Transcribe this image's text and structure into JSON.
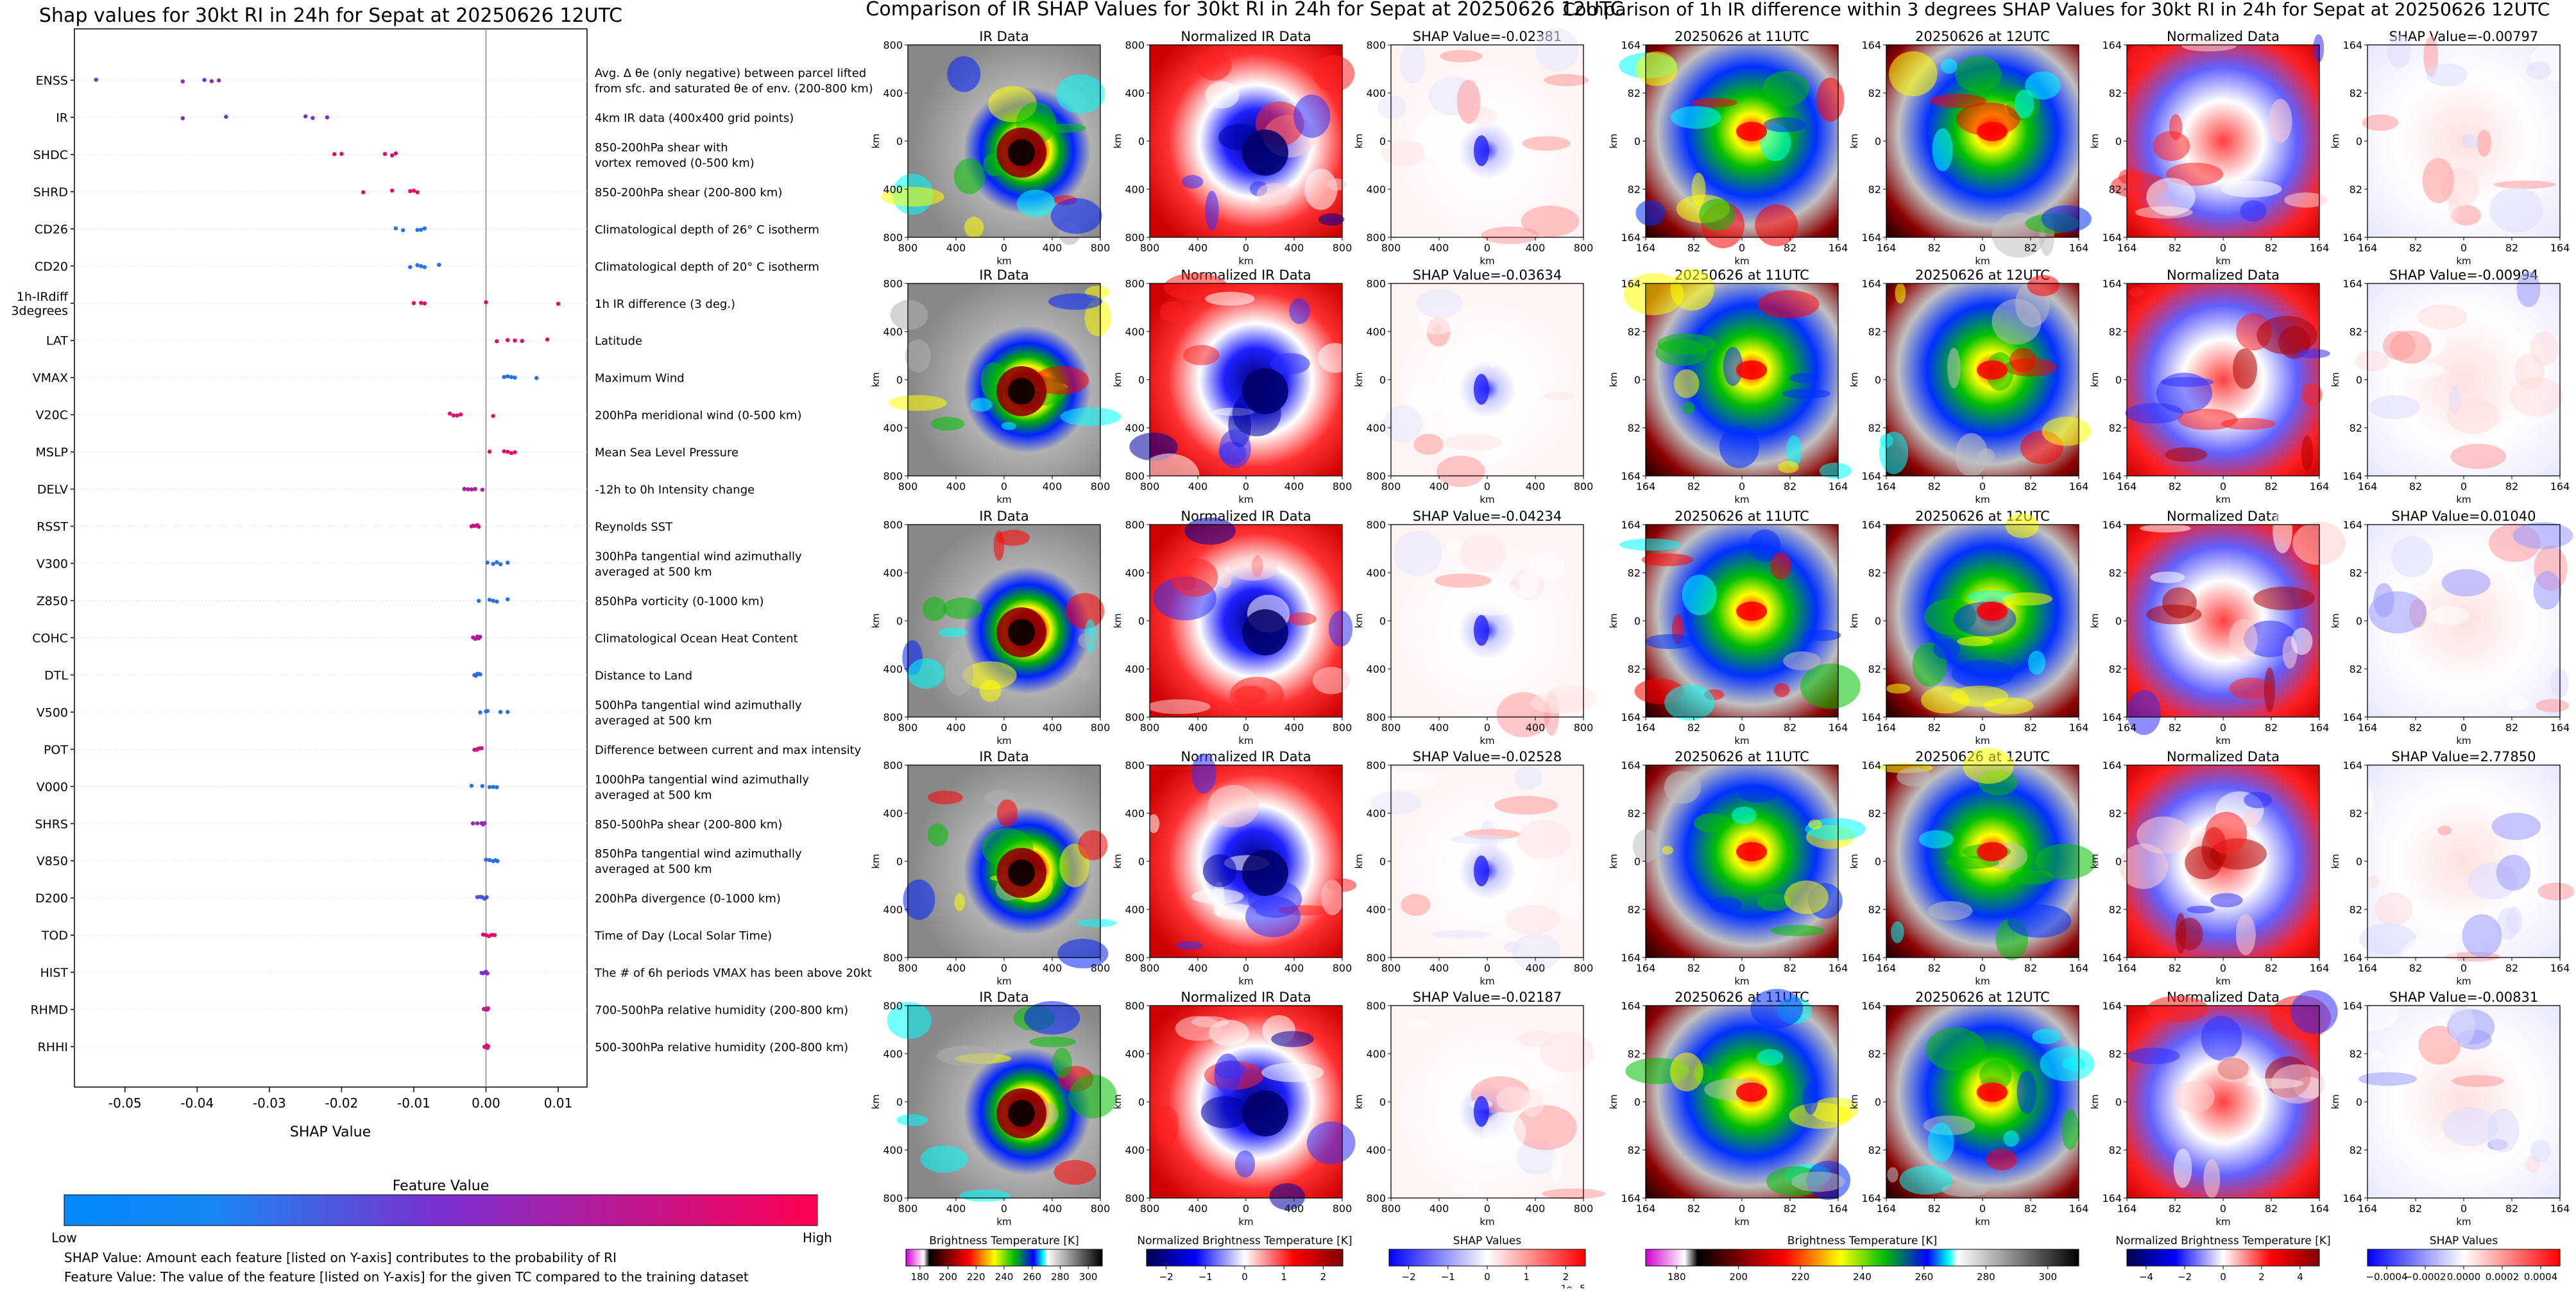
{
  "chart_data": [
    {
      "type": "scatter",
      "title": "Shap values for 30kt RI in 24h for Sepat at 20250626 12UTC",
      "xlabel": "SHAP Value",
      "xlim": [
        -0.057,
        0.014
      ],
      "xticks": [
        "-0.05",
        "-0.04",
        "-0.03",
        "-0.02",
        "-0.01",
        "0.00",
        "0.01"
      ],
      "xtick_values": [
        -0.05,
        -0.04,
        -0.03,
        -0.02,
        -0.01,
        0.0,
        0.01
      ],
      "colorbar": {
        "title": "Feature Value",
        "low": "Low",
        "high": "High",
        "colors": [
          "#008afb",
          "#7b2fcf",
          "#ff0052"
        ]
      },
      "footnotes": [
        "SHAP Value: Amount each feature [listed on Y-axis] contributes to the probability of RI",
        "Feature Value: The value of the feature [listed on Y-axis] for the given TC compared to the training dataset"
      ],
      "features": [
        {
          "name": "ENSS",
          "desc": [
            "Avg. Δ θe (only negative) between parcel lifted",
            "from sfc. and saturated θe of env. (200-800 km)"
          ],
          "points": [
            [
              -0.054,
              0.52
            ],
            [
              -0.042,
              0.55
            ],
            [
              -0.039,
              0.55
            ],
            [
              -0.038,
              0.6
            ],
            [
              -0.037,
              0.6
            ]
          ]
        },
        {
          "name": "IR",
          "desc": [
            "4km IR data (400x400 grid points)"
          ],
          "points": [
            [
              -0.042,
              0.55
            ],
            [
              -0.036,
              0.5
            ],
            [
              -0.025,
              0.45
            ],
            [
              -0.024,
              0.5
            ],
            [
              -0.022,
              0.5
            ]
          ]
        },
        {
          "name": "SHDC",
          "desc": [
            "850-200hPa shear with",
            "vortex removed (0-500 km)"
          ],
          "points": [
            [
              -0.021,
              0.85
            ],
            [
              -0.02,
              0.85
            ],
            [
              -0.014,
              0.9
            ],
            [
              -0.013,
              0.9
            ],
            [
              -0.0125,
              0.9
            ]
          ]
        },
        {
          "name": "SHRD",
          "desc": [
            "850-200hPa shear (200-800 km)"
          ],
          "points": [
            [
              -0.017,
              0.88
            ],
            [
              -0.013,
              0.9
            ],
            [
              -0.0105,
              0.92
            ],
            [
              -0.01,
              0.92
            ],
            [
              -0.0095,
              0.92
            ]
          ]
        },
        {
          "name": "CD26",
          "desc": [
            "Climatological depth of 26° C isotherm"
          ],
          "points": [
            [
              -0.0125,
              0.1
            ],
            [
              -0.0115,
              0.1
            ],
            [
              -0.0095,
              0.12
            ],
            [
              -0.009,
              0.12
            ],
            [
              -0.0085,
              0.12
            ]
          ]
        },
        {
          "name": "CD20",
          "desc": [
            "Climatological depth of 20° C isotherm"
          ],
          "points": [
            [
              -0.0105,
              0.12
            ],
            [
              -0.0095,
              0.12
            ],
            [
              -0.009,
              0.12
            ],
            [
              -0.0085,
              0.12
            ],
            [
              -0.0065,
              0.15
            ]
          ]
        },
        {
          "name": "1h-IRdiff\n3degrees",
          "desc": [
            "1h IR difference (3 deg.)"
          ],
          "points": [
            [
              -0.01,
              0.88
            ],
            [
              -0.009,
              0.9
            ],
            [
              -0.0085,
              0.9
            ],
            [
              0.0,
              0.85
            ],
            [
              0.01,
              0.95
            ]
          ]
        },
        {
          "name": "LAT",
          "desc": [
            "Latitude"
          ],
          "points": [
            [
              0.0015,
              0.9
            ],
            [
              0.003,
              0.92
            ],
            [
              0.004,
              0.92
            ],
            [
              0.005,
              0.93
            ],
            [
              0.0085,
              0.95
            ]
          ]
        },
        {
          "name": "VMAX",
          "desc": [
            "Maximum Wind"
          ],
          "points": [
            [
              0.0025,
              0.12
            ],
            [
              0.003,
              0.12
            ],
            [
              0.0035,
              0.12
            ],
            [
              0.004,
              0.12
            ],
            [
              0.007,
              0.15
            ]
          ]
        },
        {
          "name": "V20C",
          "desc": [
            "200hPa meridional wind (0-500 km)"
          ],
          "points": [
            [
              -0.005,
              0.9
            ],
            [
              -0.0045,
              0.9
            ],
            [
              -0.004,
              0.9
            ],
            [
              -0.0035,
              0.9
            ],
            [
              0.001,
              0.88
            ]
          ]
        },
        {
          "name": "MSLP",
          "desc": [
            "Mean Sea Level Pressure"
          ],
          "points": [
            [
              0.0005,
              0.9
            ],
            [
              0.0025,
              0.9
            ],
            [
              0.003,
              0.92
            ],
            [
              0.0035,
              0.92
            ],
            [
              0.004,
              0.92
            ]
          ]
        },
        {
          "name": "DELV",
          "desc": [
            "-12h to 0h Intensity change"
          ],
          "points": [
            [
              -0.003,
              0.7
            ],
            [
              -0.0025,
              0.7
            ],
            [
              -0.002,
              0.7
            ],
            [
              -0.0015,
              0.72
            ],
            [
              -0.0005,
              0.7
            ]
          ]
        },
        {
          "name": "RSST",
          "desc": [
            "Reynolds SST"
          ],
          "points": [
            [
              -0.002,
              0.8
            ],
            [
              -0.0018,
              0.8
            ],
            [
              -0.0015,
              0.8
            ],
            [
              -0.0012,
              0.8
            ],
            [
              -0.001,
              0.8
            ]
          ]
        },
        {
          "name": "V300",
          "desc": [
            "300hPa tangential wind azimuthally",
            "averaged at 500 km"
          ],
          "points": [
            [
              0.0002,
              0.15
            ],
            [
              0.001,
              0.15
            ],
            [
              0.0015,
              0.15
            ],
            [
              0.002,
              0.15
            ],
            [
              0.003,
              0.15
            ]
          ]
        },
        {
          "name": "Z850",
          "desc": [
            "850hPa vorticity (0-1000 km)"
          ],
          "points": [
            [
              -0.001,
              0.15
            ],
            [
              0.0005,
              0.15
            ],
            [
              0.001,
              0.15
            ],
            [
              0.0015,
              0.15
            ],
            [
              0.003,
              0.15
            ]
          ]
        },
        {
          "name": "COHC",
          "desc": [
            "Climatological Ocean Heat Content"
          ],
          "points": [
            [
              -0.0018,
              0.7
            ],
            [
              -0.0015,
              0.7
            ],
            [
              -0.0012,
              0.7
            ],
            [
              -0.001,
              0.7
            ],
            [
              -0.0008,
              0.7
            ]
          ]
        },
        {
          "name": "DTL",
          "desc": [
            "Distance to Land"
          ],
          "points": [
            [
              -0.0016,
              0.2
            ],
            [
              -0.0014,
              0.2
            ],
            [
              -0.0012,
              0.2
            ],
            [
              -0.001,
              0.2
            ],
            [
              -0.0008,
              0.2
            ]
          ]
        },
        {
          "name": "V500",
          "desc": [
            "500hPa tangential wind azimuthally",
            "averaged at 500 km"
          ],
          "points": [
            [
              -0.0008,
              0.15
            ],
            [
              0.0,
              0.15
            ],
            [
              0.0002,
              0.15
            ],
            [
              0.002,
              0.15
            ],
            [
              0.003,
              0.15
            ]
          ]
        },
        {
          "name": "POT",
          "desc": [
            "Difference between current and max intensity"
          ],
          "points": [
            [
              -0.0016,
              0.8
            ],
            [
              -0.0013,
              0.8
            ],
            [
              -0.0011,
              0.8
            ],
            [
              -0.0009,
              0.8
            ],
            [
              -0.0006,
              0.8
            ]
          ]
        },
        {
          "name": "V000",
          "desc": [
            "1000hPa tangential wind azimuthally",
            "averaged at 500 km"
          ],
          "points": [
            [
              -0.002,
              0.15
            ],
            [
              -0.0005,
              0.15
            ],
            [
              0.0005,
              0.15
            ],
            [
              0.001,
              0.15
            ],
            [
              0.0015,
              0.15
            ]
          ]
        },
        {
          "name": "SHRS",
          "desc": [
            "850-500hPa shear (200-800 km)"
          ],
          "points": [
            [
              -0.0018,
              0.6
            ],
            [
              -0.0012,
              0.6
            ],
            [
              -0.0006,
              0.6
            ],
            [
              -0.0004,
              0.6
            ],
            [
              -0.0002,
              0.6
            ]
          ]
        },
        {
          "name": "V850",
          "desc": [
            "850hPa tangential wind azimuthally",
            "averaged at 500 km"
          ],
          "points": [
            [
              0.0,
              0.15
            ],
            [
              0.0005,
              0.15
            ],
            [
              0.001,
              0.15
            ],
            [
              0.0013,
              0.15
            ],
            [
              0.0016,
              0.15
            ]
          ]
        },
        {
          "name": "D200",
          "desc": [
            "200hPa divergence (0-1000 km)"
          ],
          "points": [
            [
              -0.0012,
              0.3
            ],
            [
              -0.0008,
              0.3
            ],
            [
              -0.0005,
              0.3
            ],
            [
              -0.0002,
              0.3
            ],
            [
              0.0001,
              0.3
            ]
          ]
        },
        {
          "name": "TOD",
          "desc": [
            "Time of Day (Local Solar Time)"
          ],
          "points": [
            [
              -0.0004,
              0.9
            ],
            [
              0.0,
              0.9
            ],
            [
              0.0004,
              0.9
            ],
            [
              0.0008,
              0.9
            ],
            [
              0.0012,
              0.9
            ]
          ]
        },
        {
          "name": "HIST",
          "desc": [
            "The # of 6h periods VMAX has been above 20kt"
          ],
          "points": [
            [
              -0.0006,
              0.5
            ],
            [
              -0.0004,
              0.5
            ],
            [
              -0.0002,
              0.5
            ],
            [
              0.0,
              0.5
            ],
            [
              0.0002,
              0.5
            ]
          ]
        },
        {
          "name": "RHMD",
          "desc": [
            "700-500hPa relative humidity (200-800 km)"
          ],
          "points": [
            [
              -0.0003,
              0.75
            ],
            [
              -0.0001,
              0.75
            ],
            [
              0.0001,
              0.75
            ],
            [
              0.0002,
              0.75
            ],
            [
              0.0003,
              0.75
            ]
          ]
        },
        {
          "name": "RHHI",
          "desc": [
            "500-300hPa relative humidity (200-800 km)"
          ],
          "points": [
            [
              -0.0002,
              0.85
            ],
            [
              0.0,
              0.85
            ],
            [
              0.0001,
              0.85
            ],
            [
              0.0002,
              0.85
            ],
            [
              0.0003,
              0.85
            ]
          ]
        }
      ]
    },
    {
      "type": "heatmap",
      "title": "Comparison of IR SHAP Values for 30kt RI in 24h for Sepat at 20250626 12UTC",
      "axis_label": "km",
      "xticks": [
        "800",
        "400",
        "0",
        "400",
        "800"
      ],
      "yticks": [
        "800",
        "400",
        "0",
        "400",
        "800"
      ],
      "columns": [
        "IR Data",
        "Normalized IR Data",
        "SHAP"
      ],
      "shap_values": [
        "-0.02381",
        "-0.03634",
        "-0.04234",
        "-0.02528",
        "-0.02187"
      ],
      "shap_prefix": "SHAP Value=",
      "colorbars": [
        {
          "label": "Brightness Temperature [K]",
          "ticks": [
            "180",
            "200",
            "220",
            "240",
            "260",
            "280",
            "300"
          ]
        },
        {
          "label": "Normalized Brightness Temperature [K]",
          "ticks": [
            "−2",
            "−1",
            "0",
            "1",
            "2"
          ]
        },
        {
          "label": "SHAP Values",
          "ticks": [
            "−2",
            "−1",
            "0",
            "1",
            "2"
          ],
          "offset": "1e−5"
        }
      ]
    },
    {
      "type": "heatmap",
      "title": "Comparison of 1h IR difference within 3 degrees SHAP Values for 30kt RI in 24h for Sepat at 20250626 12UTC",
      "axis_label": "km",
      "xticks": [
        "164",
        "82",
        "0",
        "82",
        "164"
      ],
      "yticks": [
        "164",
        "82",
        "0",
        "82",
        "164"
      ],
      "columns": [
        "20250626 at 11UTC",
        "20250626 at 12UTC",
        "Normalized Data",
        "SHAP"
      ],
      "shap_values": [
        "-0.00797",
        "-0.00994",
        "0.01040",
        "2.77850",
        "-0.00831"
      ],
      "shap_prefix": "SHAP Value=",
      "colorbars": [
        {
          "label": "Brightness Temperature [K]",
          "ticks": [
            "180",
            "200",
            "220",
            "240",
            "260",
            "280",
            "300"
          ]
        },
        {
          "label": "Normalized Brightness Temperature [K]",
          "ticks": [
            "−4",
            "−2",
            "0",
            "2",
            "4"
          ]
        },
        {
          "label": "SHAP Values",
          "ticks": [
            "−0.0004",
            "−0.0002",
            "0.0000",
            "0.0002",
            "0.0004"
          ]
        }
      ]
    }
  ]
}
